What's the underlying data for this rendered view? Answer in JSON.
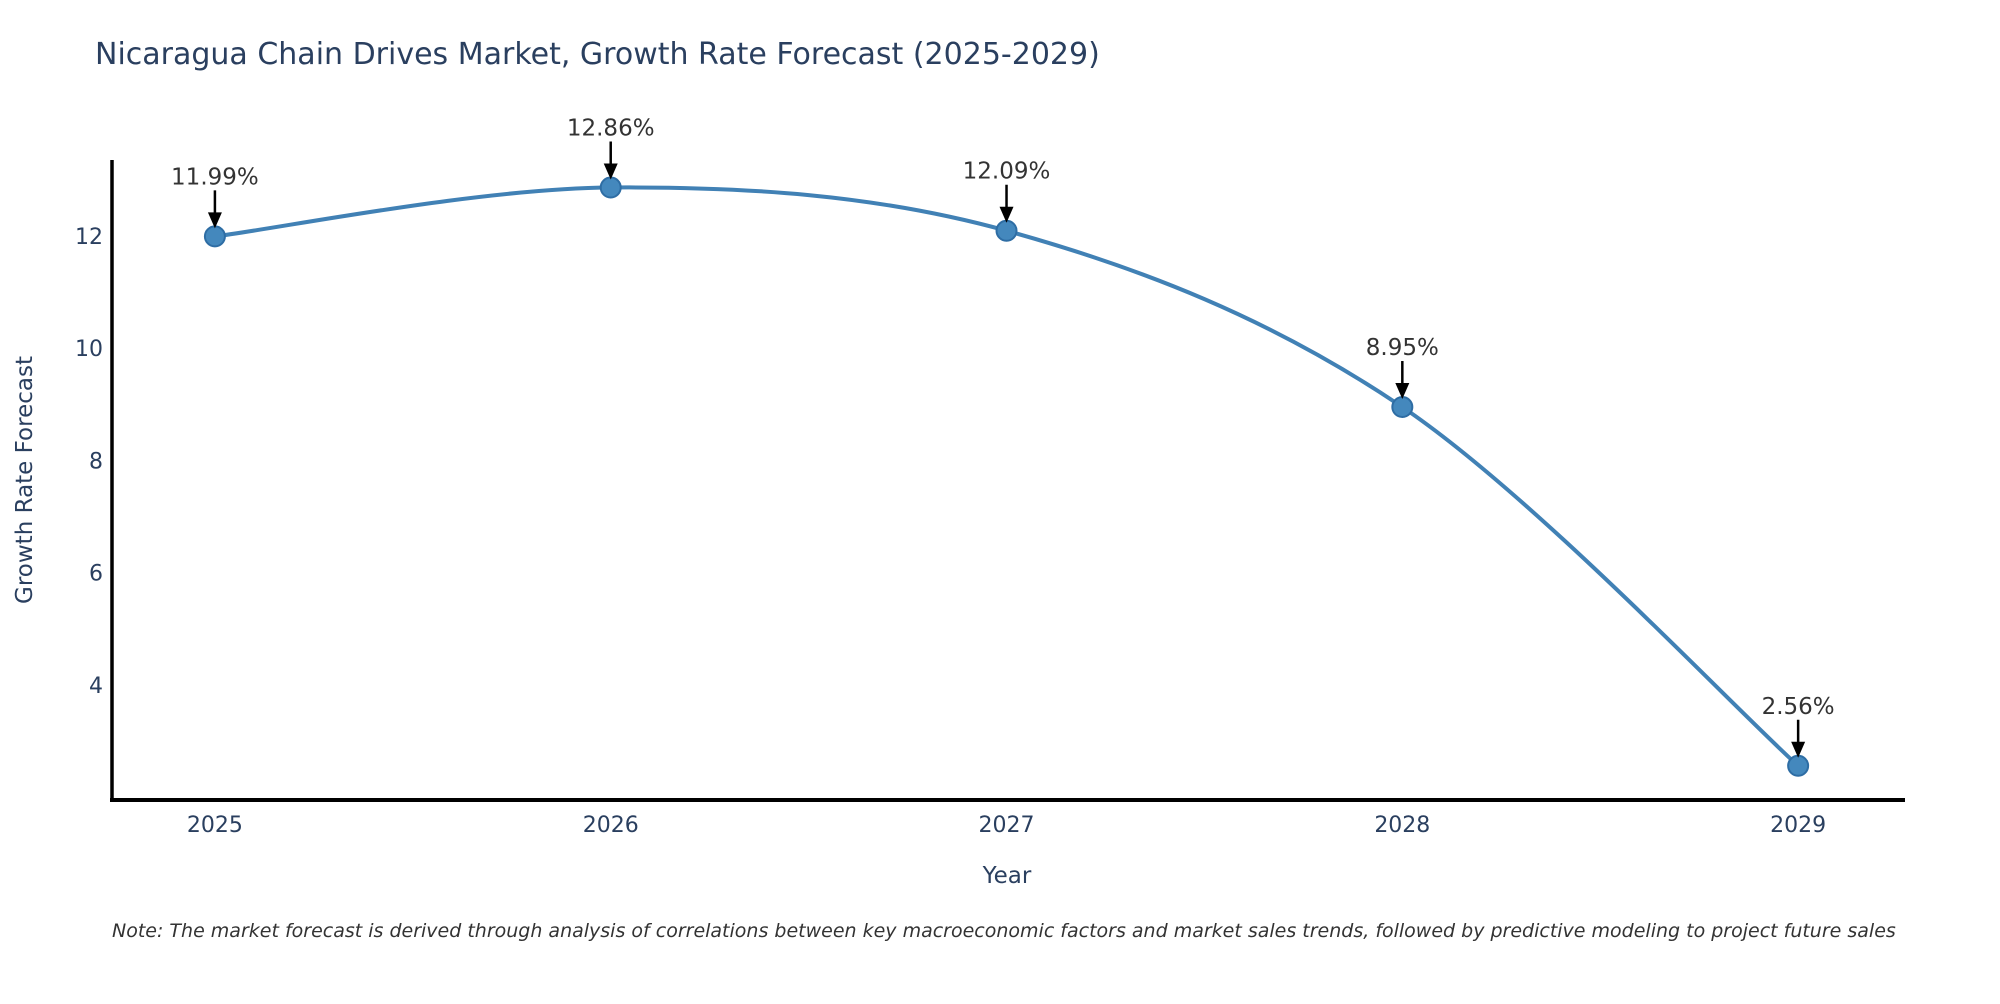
{
  "figure": {
    "title": "Nicaragua Chain Drives Market, Growth Rate Forecast (2025-2029)",
    "note": "Note: The market forecast is derived through analysis of correlations between key macroeconomic factors and market sales trends, followed by predictive modeling to project future sales"
  },
  "chart_data": {
    "type": "line",
    "title": "Nicaragua Chain Drives Market, Growth Rate Forecast (2025-2029)",
    "x": [
      2025,
      2026,
      2027,
      2028,
      2029
    ],
    "series": [
      {
        "name": "Growth Rate Forecast",
        "values": [
          11.99,
          12.86,
          12.09,
          8.95,
          2.56
        ]
      }
    ],
    "point_labels": [
      "11.99%",
      "12.86%",
      "12.09%",
      "8.95%",
      "2.56%"
    ],
    "xlabel": "Year",
    "ylabel": "Growth Rate Forecast",
    "xticks": [
      2025,
      2026,
      2027,
      2028,
      2029
    ],
    "yticks": [
      4,
      6,
      8,
      10,
      12
    ],
    "xlim": [
      2024.74,
      2029.27
    ],
    "ylim": [
      1.95,
      13.35
    ],
    "grid": false,
    "legend": false,
    "line_shape": "spline",
    "annotations_have_arrows": true,
    "colors": {
      "line": "#4181b5",
      "marker_fill": "#4488bd",
      "marker_edge": "#2e6da4",
      "annotation_text": "#333333",
      "arrow": "#000000",
      "axis_line": "#000000",
      "tick_text": "#2a3f5f",
      "title_text": "#2a3f5f"
    }
  }
}
